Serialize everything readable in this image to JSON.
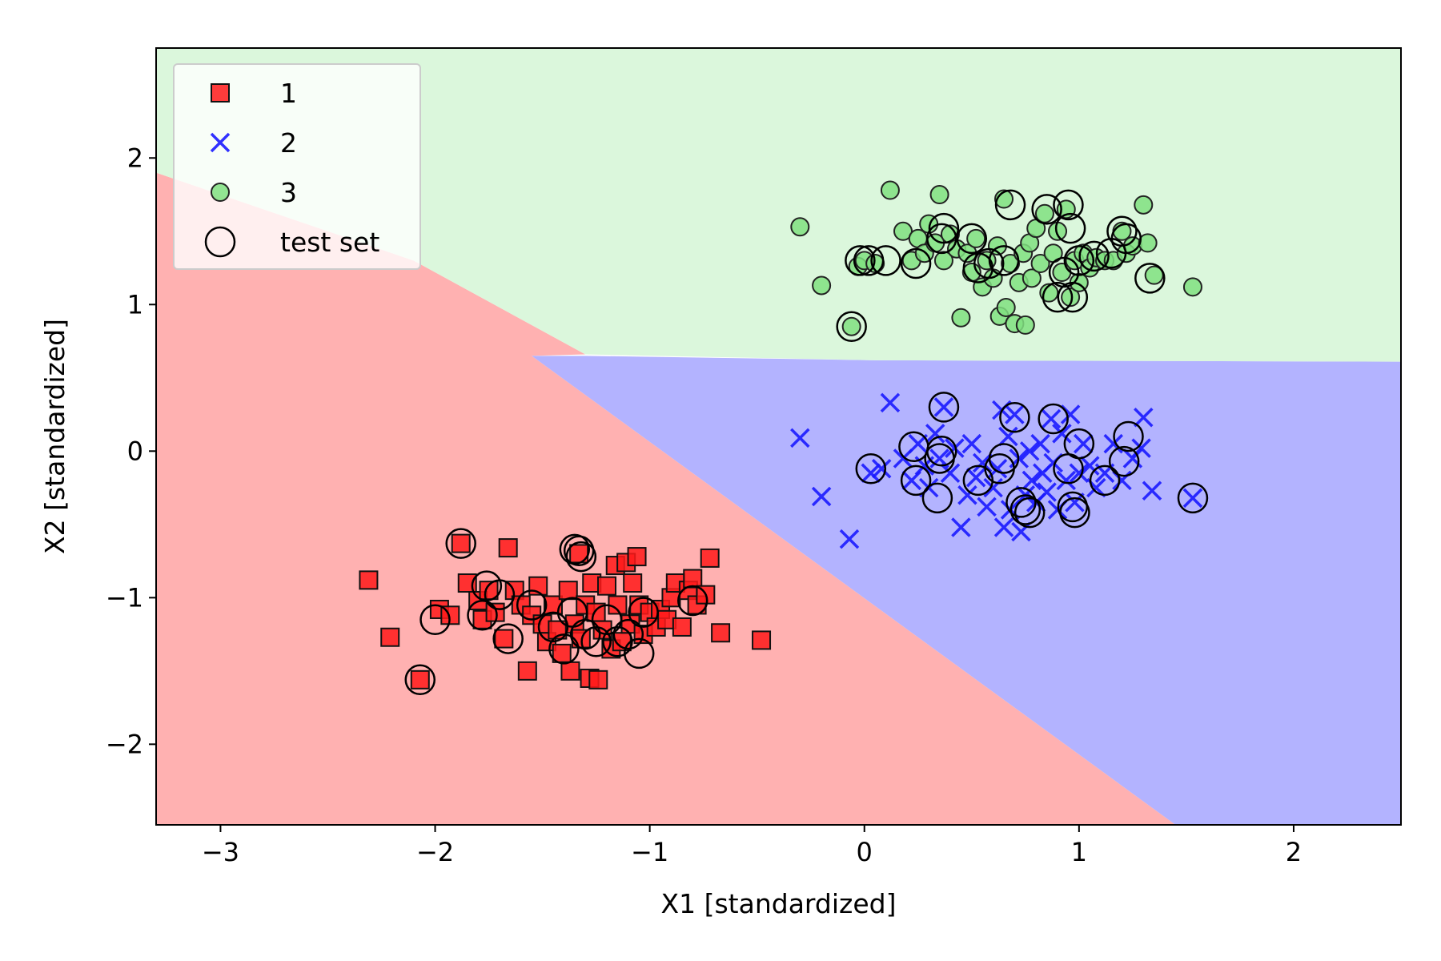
{
  "chart_data": {
    "type": "scatter",
    "xlabel": "X1 [standardized]",
    "ylabel": "X2 [standardized]",
    "xlim": [
      -3.3,
      2.5
    ],
    "ylim": [
      -2.55,
      2.75
    ],
    "xticks": [
      -3,
      -2,
      -1,
      0,
      1,
      2
    ],
    "yticks": [
      -2,
      -1,
      0,
      1,
      2
    ],
    "xtick_labels": [
      "−3",
      "−2",
      "−1",
      "0",
      "1",
      "2"
    ],
    "ytick_labels": [
      "−2",
      "−1",
      "0",
      "1",
      "2"
    ],
    "grid": false,
    "legend_position": "top-left",
    "regions": [
      {
        "class": "1",
        "color": "#ffb1b1",
        "polygon": [
          [
            -3.3,
            1.9
          ],
          [
            -2.1,
            1.3
          ],
          [
            -1.3,
            0.66
          ],
          [
            -1.55,
            0.65
          ],
          [
            1.45,
            -2.55
          ],
          [
            -3.3,
            -2.55
          ]
        ]
      },
      {
        "class": "2",
        "color": "#b3b3ff",
        "polygon": [
          [
            -1.55,
            0.65
          ],
          [
            -1.3,
            0.65
          ],
          [
            0.05,
            0.62
          ],
          [
            2.5,
            0.61
          ],
          [
            2.5,
            -2.55
          ],
          [
            1.45,
            -2.55
          ]
        ]
      },
      {
        "class": "3",
        "color": "#dbf7dc",
        "polygon": [
          [
            -3.3,
            2.75
          ],
          [
            2.5,
            2.75
          ],
          [
            2.5,
            0.61
          ],
          [
            0.05,
            0.62
          ],
          [
            -1.3,
            0.66
          ],
          [
            -2.1,
            1.3
          ],
          [
            -3.3,
            1.9
          ]
        ]
      }
    ],
    "series": [
      {
        "name": "1",
        "marker": "square",
        "color": "#ff1a1a",
        "points": [
          [
            -2.31,
            -0.88
          ],
          [
            -2.21,
            -1.27
          ],
          [
            -2.07,
            -1.56
          ],
          [
            -1.98,
            -1.08
          ],
          [
            -1.93,
            -1.12
          ],
          [
            -1.88,
            -0.63
          ],
          [
            -1.85,
            -0.9
          ],
          [
            -1.8,
            -1.02
          ],
          [
            -1.78,
            -1.15
          ],
          [
            -1.75,
            -0.95
          ],
          [
            -1.72,
            -1.1
          ],
          [
            -1.68,
            -1.28
          ],
          [
            -1.66,
            -0.66
          ],
          [
            -1.63,
            -0.95
          ],
          [
            -1.6,
            -1.05
          ],
          [
            -1.57,
            -1.5
          ],
          [
            -1.55,
            -1.12
          ],
          [
            -1.52,
            -0.92
          ],
          [
            -1.5,
            -1.18
          ],
          [
            -1.48,
            -1.3
          ],
          [
            -1.45,
            -1.05
          ],
          [
            -1.43,
            -1.22
          ],
          [
            -1.41,
            -1.38
          ],
          [
            -1.38,
            -0.95
          ],
          [
            -1.37,
            -1.5
          ],
          [
            -1.35,
            -1.18
          ],
          [
            -1.33,
            -0.7
          ],
          [
            -1.32,
            -1.28
          ],
          [
            -1.3,
            -1.05
          ],
          [
            -1.28,
            -1.55
          ],
          [
            -1.27,
            -0.9
          ],
          [
            -1.25,
            -1.1
          ],
          [
            -1.24,
            -1.56
          ],
          [
            -1.22,
            -1.22
          ],
          [
            -1.2,
            -0.92
          ],
          [
            -1.18,
            -1.35
          ],
          [
            -1.16,
            -0.78
          ],
          [
            -1.15,
            -1.05
          ],
          [
            -1.13,
            -1.3
          ],
          [
            -1.11,
            -0.76
          ],
          [
            -1.09,
            -1.18
          ],
          [
            -1.08,
            -0.9
          ],
          [
            -1.06,
            -0.72
          ],
          [
            -1.05,
            -1.05
          ],
          [
            -1.03,
            -1.25
          ],
          [
            -1.0,
            -1.1
          ],
          [
            -0.97,
            -1.2
          ],
          [
            -0.95,
            -1.08
          ],
          [
            -0.92,
            -1.15
          ],
          [
            -0.9,
            -1.0
          ],
          [
            -0.88,
            -0.9
          ],
          [
            -0.85,
            -1.2
          ],
          [
            -0.82,
            -0.95
          ],
          [
            -0.8,
            -0.87
          ],
          [
            -0.78,
            -1.05
          ],
          [
            -0.74,
            -0.98
          ],
          [
            -0.72,
            -0.73
          ],
          [
            -0.67,
            -1.24
          ],
          [
            -0.48,
            -1.29
          ]
        ]
      },
      {
        "name": "2",
        "marker": "x",
        "color": "#1a1aff",
        "points": [
          [
            -0.3,
            0.09
          ],
          [
            -0.2,
            -0.31
          ],
          [
            -0.07,
            -0.6
          ],
          [
            0.03,
            -0.15
          ],
          [
            0.08,
            -0.12
          ],
          [
            0.12,
            0.33
          ],
          [
            0.18,
            -0.05
          ],
          [
            0.22,
            -0.2
          ],
          [
            0.25,
            0.05
          ],
          [
            0.28,
            -0.1
          ],
          [
            0.3,
            -0.25
          ],
          [
            0.33,
            0.12
          ],
          [
            0.35,
            -0.05
          ],
          [
            0.37,
            0.3
          ],
          [
            0.4,
            -0.15
          ],
          [
            0.42,
            0.02
          ],
          [
            0.45,
            -0.52
          ],
          [
            0.48,
            -0.3
          ],
          [
            0.5,
            0.05
          ],
          [
            0.52,
            -0.18
          ],
          [
            0.55,
            -0.08
          ],
          [
            0.57,
            -0.38
          ],
          [
            0.6,
            -0.25
          ],
          [
            0.62,
            -0.12
          ],
          [
            0.64,
            0.28
          ],
          [
            0.65,
            -0.52
          ],
          [
            0.67,
            0.1
          ],
          [
            0.68,
            -0.4
          ],
          [
            0.7,
            0.25
          ],
          [
            0.72,
            -0.05
          ],
          [
            0.73,
            -0.55
          ],
          [
            0.75,
            -0.3
          ],
          [
            0.77,
            0.0
          ],
          [
            0.78,
            -0.2
          ],
          [
            0.8,
            -0.35
          ],
          [
            0.82,
            0.05
          ],
          [
            0.83,
            -0.15
          ],
          [
            0.85,
            -0.28
          ],
          [
            0.87,
            0.22
          ],
          [
            0.88,
            -0.08
          ],
          [
            0.9,
            -0.4
          ],
          [
            0.92,
            0.12
          ],
          [
            0.94,
            -0.2
          ],
          [
            0.96,
            0.25
          ],
          [
            0.98,
            -0.35
          ],
          [
            1.0,
            -0.15
          ],
          [
            1.02,
            0.05
          ],
          [
            1.05,
            -0.1
          ],
          [
            1.08,
            -0.25
          ],
          [
            1.12,
            -0.15
          ],
          [
            1.16,
            0.05
          ],
          [
            1.2,
            -0.2
          ],
          [
            1.25,
            -0.05
          ],
          [
            1.29,
            0.02
          ],
          [
            1.3,
            0.23
          ],
          [
            1.34,
            -0.27
          ],
          [
            1.53,
            -0.32
          ]
        ]
      },
      {
        "name": "3",
        "marker": "circle",
        "color": "#80e080",
        "points": [
          [
            -0.3,
            1.53
          ],
          [
            -0.2,
            1.13
          ],
          [
            -0.06,
            0.85
          ],
          [
            -0.03,
            1.26
          ],
          [
            0.0,
            1.3
          ],
          [
            0.05,
            1.28
          ],
          [
            0.12,
            1.78
          ],
          [
            0.18,
            1.5
          ],
          [
            0.22,
            1.3
          ],
          [
            0.25,
            1.45
          ],
          [
            0.28,
            1.35
          ],
          [
            0.3,
            1.55
          ],
          [
            0.33,
            1.42
          ],
          [
            0.35,
            1.75
          ],
          [
            0.37,
            1.3
          ],
          [
            0.4,
            1.48
          ],
          [
            0.43,
            1.38
          ],
          [
            0.45,
            0.91
          ],
          [
            0.48,
            1.35
          ],
          [
            0.5,
            1.22
          ],
          [
            0.52,
            1.45
          ],
          [
            0.55,
            1.12
          ],
          [
            0.57,
            1.3
          ],
          [
            0.6,
            1.18
          ],
          [
            0.62,
            1.4
          ],
          [
            0.63,
            0.92
          ],
          [
            0.65,
            1.72
          ],
          [
            0.66,
            0.98
          ],
          [
            0.68,
            1.28
          ],
          [
            0.7,
            0.87
          ],
          [
            0.72,
            1.15
          ],
          [
            0.74,
            1.35
          ],
          [
            0.75,
            0.86
          ],
          [
            0.77,
            1.42
          ],
          [
            0.78,
            1.18
          ],
          [
            0.8,
            1.52
          ],
          [
            0.82,
            1.28
          ],
          [
            0.84,
            1.62
          ],
          [
            0.86,
            1.08
          ],
          [
            0.88,
            1.35
          ],
          [
            0.9,
            1.5
          ],
          [
            0.92,
            1.22
          ],
          [
            0.94,
            1.65
          ],
          [
            0.96,
            1.05
          ],
          [
            0.98,
            1.3
          ],
          [
            1.0,
            1.15
          ],
          [
            1.02,
            1.35
          ],
          [
            1.05,
            1.25
          ],
          [
            1.08,
            1.32
          ],
          [
            1.12,
            1.3
          ],
          [
            1.16,
            1.3
          ],
          [
            1.2,
            1.5
          ],
          [
            1.22,
            1.35
          ],
          [
            1.25,
            1.4
          ],
          [
            1.3,
            1.68
          ],
          [
            1.32,
            1.42
          ],
          [
            1.35,
            1.2
          ],
          [
            1.53,
            1.12
          ]
        ]
      }
    ],
    "test_set": [
      [
        -2.07,
        -1.56
      ],
      [
        -2.0,
        -1.15
      ],
      [
        -1.88,
        -0.63
      ],
      [
        -1.78,
        -1.12
      ],
      [
        -1.76,
        -0.92
      ],
      [
        -1.7,
        -0.98
      ],
      [
        -1.66,
        -1.28
      ],
      [
        -1.55,
        -1.05
      ],
      [
        -1.45,
        -1.2
      ],
      [
        -1.4,
        -1.35
      ],
      [
        -1.36,
        -1.1
      ],
      [
        -1.35,
        -0.67
      ],
      [
        -1.33,
        -0.68
      ],
      [
        -1.32,
        -0.72
      ],
      [
        -1.3,
        -1.25
      ],
      [
        -1.25,
        -1.3
      ],
      [
        -1.2,
        -1.15
      ],
      [
        -1.15,
        -1.3
      ],
      [
        -1.1,
        -1.25
      ],
      [
        -1.05,
        -1.38
      ],
      [
        -1.03,
        -1.1
      ],
      [
        -0.8,
        -1.02
      ],
      [
        0.03,
        -0.12
      ],
      [
        0.23,
        0.03
      ],
      [
        0.24,
        -0.2
      ],
      [
        0.34,
        -0.32
      ],
      [
        0.35,
        -0.05
      ],
      [
        0.36,
        0.0
      ],
      [
        0.37,
        0.3
      ],
      [
        0.53,
        -0.2
      ],
      [
        0.63,
        -0.12
      ],
      [
        0.65,
        -0.05
      ],
      [
        0.7,
        0.23
      ],
      [
        0.73,
        -0.35
      ],
      [
        0.75,
        -0.4
      ],
      [
        0.77,
        -0.42
      ],
      [
        0.88,
        0.22
      ],
      [
        0.95,
        -0.12
      ],
      [
        0.97,
        -0.38
      ],
      [
        0.98,
        -0.42
      ],
      [
        1.0,
        0.05
      ],
      [
        1.12,
        -0.2
      ],
      [
        1.21,
        -0.07
      ],
      [
        1.23,
        0.1
      ],
      [
        1.53,
        -0.32
      ],
      [
        -0.06,
        0.85
      ],
      [
        -0.02,
        1.3
      ],
      [
        0.02,
        1.3
      ],
      [
        0.1,
        1.3
      ],
      [
        0.24,
        1.28
      ],
      [
        0.36,
        1.45
      ],
      [
        0.37,
        1.52
      ],
      [
        0.5,
        1.45
      ],
      [
        0.53,
        1.25
      ],
      [
        0.58,
        1.28
      ],
      [
        0.65,
        1.3
      ],
      [
        0.68,
        1.68
      ],
      [
        0.85,
        1.65
      ],
      [
        0.9,
        1.05
      ],
      [
        0.93,
        1.22
      ],
      [
        0.95,
        1.68
      ],
      [
        0.96,
        1.52
      ],
      [
        0.97,
        1.05
      ],
      [
        1.0,
        1.3
      ],
      [
        1.07,
        1.33
      ],
      [
        1.15,
        1.35
      ],
      [
        1.2,
        1.5
      ],
      [
        1.22,
        1.45
      ],
      [
        1.33,
        1.18
      ]
    ],
    "legend": [
      {
        "label": "1",
        "marker": "square",
        "color": "#ff1a1a"
      },
      {
        "label": "2",
        "marker": "x",
        "color": "#1a1aff"
      },
      {
        "label": "3",
        "marker": "circle",
        "color": "#80e080"
      },
      {
        "label": "test set",
        "marker": "open-circle",
        "color": "#000000"
      }
    ]
  }
}
